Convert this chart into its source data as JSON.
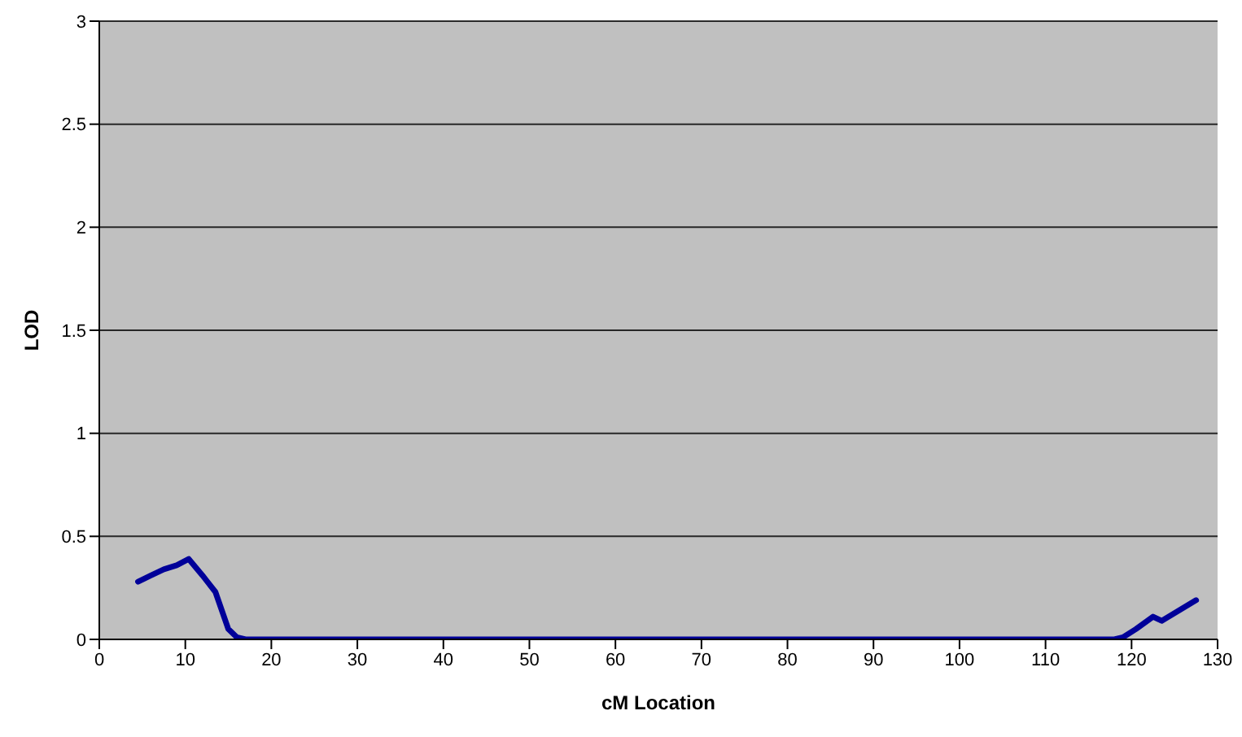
{
  "chart_data": {
    "type": "line",
    "xlabel": "cM Location",
    "ylabel": "LOD",
    "series": [
      {
        "color": "#000099",
        "x": [
          4.5,
          6,
          7.5,
          9,
          10.4,
          12,
          13.5,
          15,
          16,
          17,
          20,
          40,
          60,
          80,
          100,
          117,
          118,
          119,
          120.5,
          122.5,
          123.5,
          125.5,
          127.5
        ],
        "values": [
          0.28,
          0.31,
          0.34,
          0.36,
          0.39,
          0.31,
          0.23,
          0.05,
          0.01,
          0,
          0,
          0,
          0,
          0,
          0,
          0,
          0,
          0.01,
          0.05,
          0.11,
          0.09,
          0.14,
          0.19
        ]
      }
    ],
    "xlim": [
      0,
      130
    ],
    "xticks": [
      0,
      10,
      20,
      30,
      40,
      50,
      60,
      70,
      80,
      90,
      100,
      110,
      120,
      130
    ],
    "ylim": [
      0,
      3
    ],
    "yticks": [
      0,
      0.5,
      1,
      1.5,
      2,
      2.5,
      3
    ],
    "grid": "y",
    "marker": "none",
    "line_style": "solid",
    "legend": false
  }
}
